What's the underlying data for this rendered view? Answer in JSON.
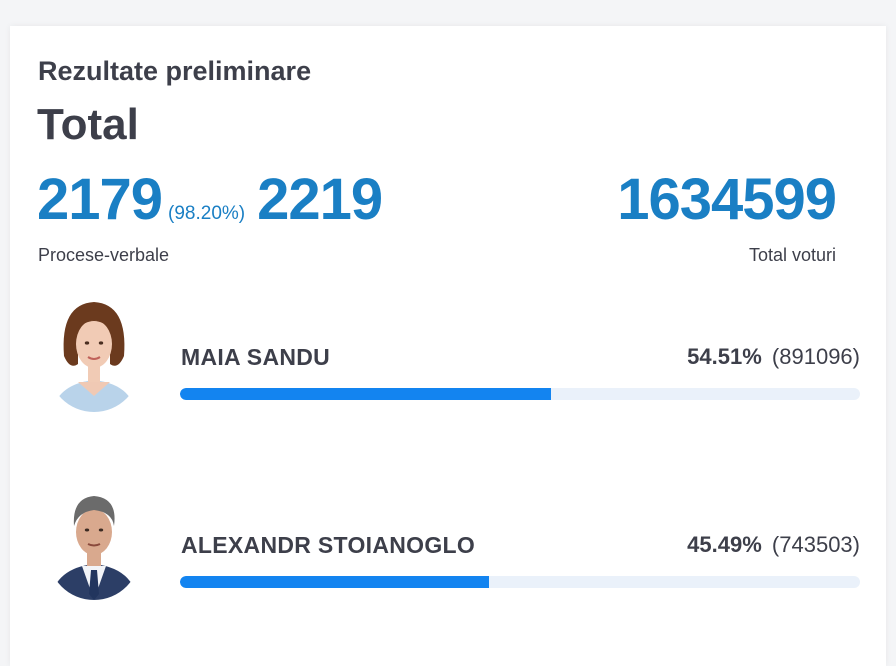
{
  "header": {
    "title": "Rezultate preliminare",
    "subtitle": "Total"
  },
  "summary": {
    "reports_counted": "2179",
    "reports_percent": "(98.20%)",
    "reports_total": "2219",
    "reports_label": "Procese-verbale",
    "total_votes": "1634599",
    "total_votes_label": "Total voturi"
  },
  "colors": {
    "accent": "#1a7fc4",
    "bar_fill": "#1384f0",
    "bar_track": "#eaf1fa",
    "text": "#3d3f4a"
  },
  "candidates": [
    {
      "name": "MAIA SANDU",
      "percent": "54.51%",
      "votes": "(891096)",
      "share": 0.5451,
      "avatar_icon": "candidate-photo-woman"
    },
    {
      "name": "ALEXANDR STOIANOGLO",
      "percent": "45.49%",
      "votes": "(743503)",
      "share": 0.4549,
      "avatar_icon": "candidate-photo-man"
    }
  ]
}
